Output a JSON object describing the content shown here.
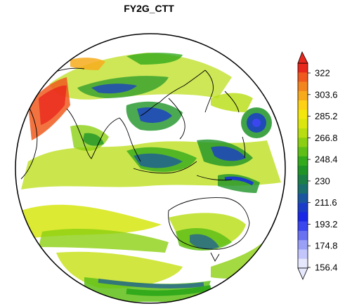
{
  "title": "FY2G_CTT",
  "colorbar": {
    "tick_labels": [
      "322",
      "303.6",
      "285.2",
      "266.8",
      "248.4",
      "230",
      "211.6",
      "193.2",
      "174.8",
      "156.4"
    ],
    "colors_top_to_bottom": [
      "#e8281c",
      "#f05a1e",
      "#f3851f",
      "#f7ab1c",
      "#fcd116",
      "#f4e70d",
      "#dbe60e",
      "#b8dd10",
      "#8ccf12",
      "#5fbf17",
      "#33aa1c",
      "#1e9427",
      "#1a7e47",
      "#1a6e6e",
      "#1a55a0",
      "#1a3cc8",
      "#1a28e6",
      "#3c46ee",
      "#6a72f2",
      "#9aa0f6",
      "#c3c6fa",
      "#e6e8fd"
    ]
  },
  "map": {
    "projection": "orthographic",
    "field": "cloud top temperature"
  }
}
